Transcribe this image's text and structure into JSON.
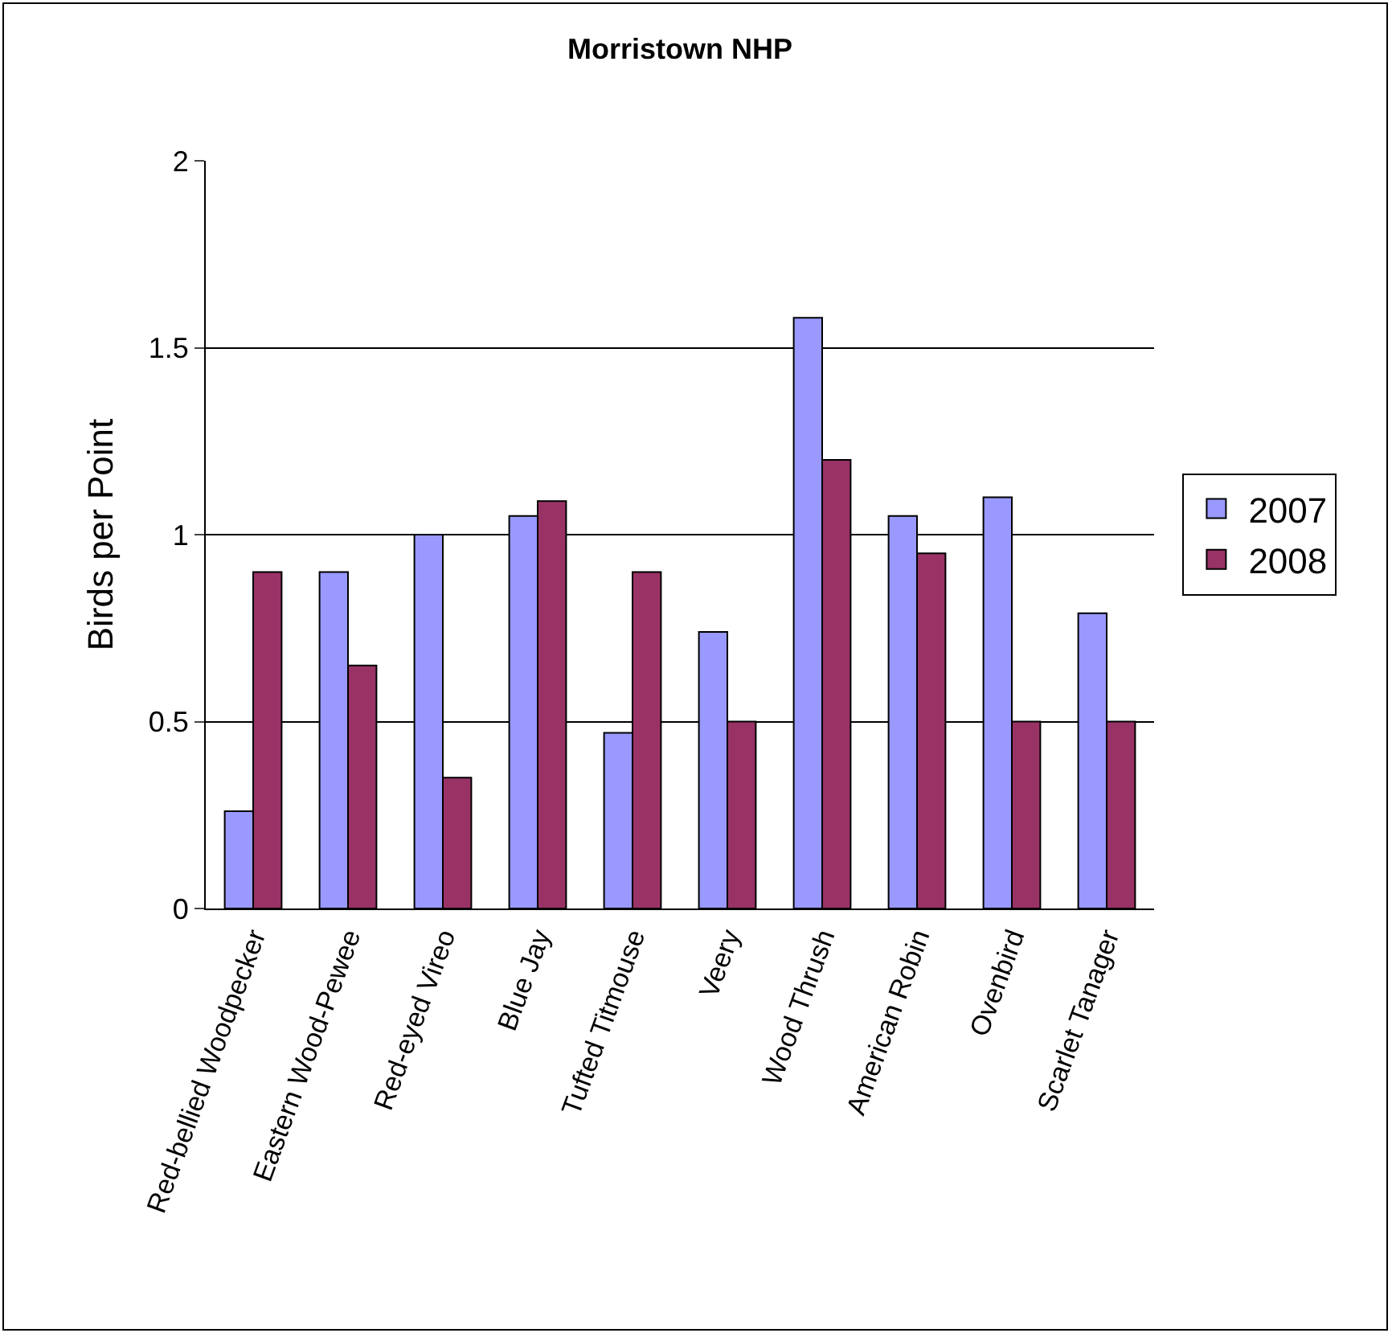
{
  "chart_data": {
    "type": "bar",
    "title": "Morristown NHP",
    "ylabel": "Birds per Point",
    "categories": [
      "Red-bellied Woodpecker",
      "Eastern Wood-Pewee",
      "Red-eyed Vireo",
      "Blue Jay",
      "Tufted Titmouse",
      "Veery",
      "Wood Thrush",
      "American Robin",
      "Ovenbird",
      "Scarlet Tanager"
    ],
    "series": [
      {
        "name": "2007",
        "color": "#9999ff",
        "values": [
          0.26,
          0.9,
          1.0,
          1.05,
          0.47,
          0.74,
          1.58,
          1.05,
          1.1,
          0.79
        ]
      },
      {
        "name": "2008",
        "color": "#993366",
        "values": [
          0.9,
          0.65,
          0.35,
          1.09,
          0.9,
          0.5,
          1.2,
          0.95,
          0.5,
          0.5
        ]
      }
    ],
    "ylim": [
      0,
      2
    ],
    "yticks": [
      0,
      0.5,
      1,
      1.5,
      2
    ],
    "grid": "y",
    "legend": "right"
  }
}
